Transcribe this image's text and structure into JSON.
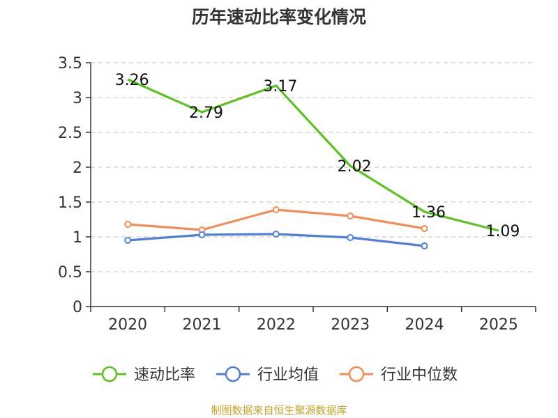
{
  "chart_data": {
    "type": "line",
    "title": "历年速动比率变化情况",
    "categories": [
      "2020",
      "2021",
      "2022",
      "2023",
      "2024",
      "2025"
    ],
    "ylim": [
      0,
      3.5
    ],
    "yticks": [
      "0",
      "0.5",
      "1",
      "1.5",
      "2",
      "2.5",
      "3",
      "3.5"
    ],
    "grid": true,
    "legend_position": "bottom",
    "series": [
      {
        "name": "速动比率",
        "color": "#5bc31f",
        "values": [
          3.26,
          2.79,
          3.17,
          2.02,
          1.36,
          1.09
        ],
        "labels": [
          "3.26",
          "2.79",
          "3.17",
          "2.02",
          "1.36",
          "1.09"
        ]
      },
      {
        "name": "行业均值",
        "color": "#4f7fd8",
        "values": [
          0.95,
          1.03,
          1.04,
          0.99,
          0.87,
          null
        ]
      },
      {
        "name": "行业中位数",
        "color": "#f48c56",
        "values": [
          1.18,
          1.1,
          1.39,
          1.3,
          1.12,
          null
        ]
      }
    ]
  },
  "source": "制图数据来自恒生聚源数据库"
}
